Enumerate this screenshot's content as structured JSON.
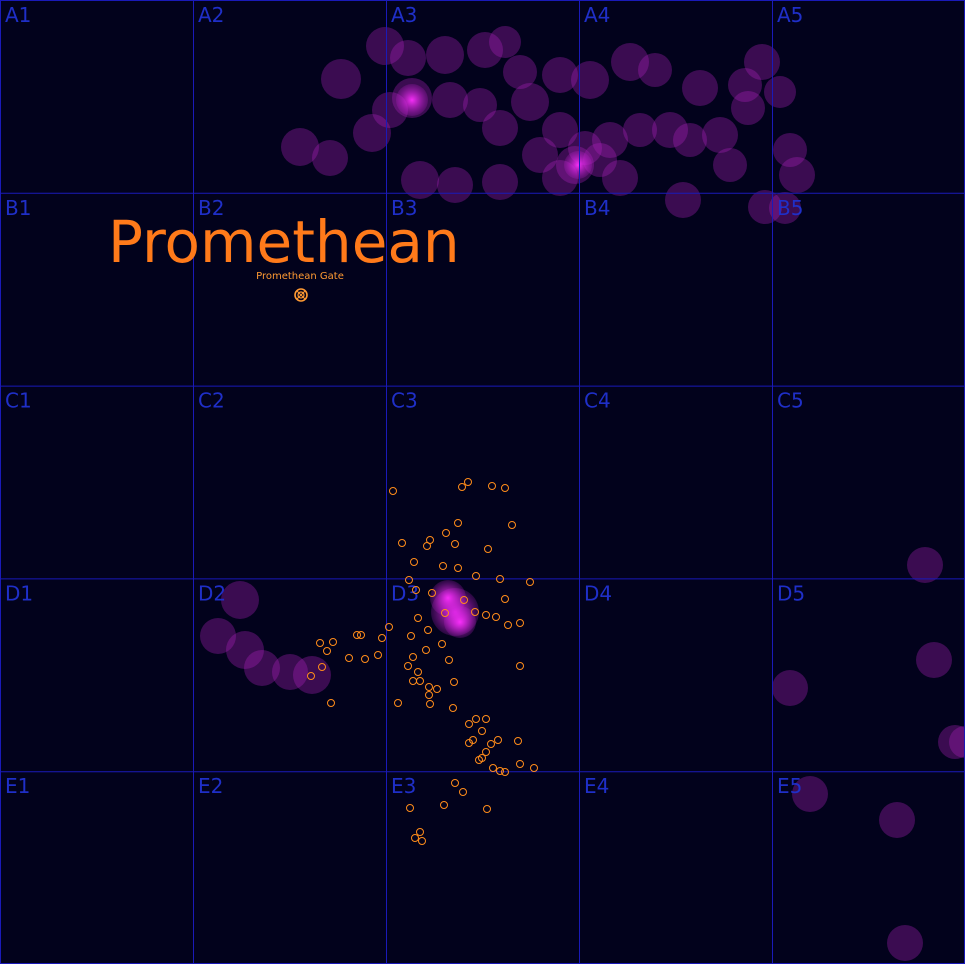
{
  "map": {
    "grid": {
      "rows": [
        "A",
        "B",
        "C",
        "D",
        "E"
      ],
      "cols": [
        "1",
        "2",
        "3",
        "4",
        "5"
      ],
      "line_color": "#1a1ab8",
      "label_color": "#1f2fc8"
    },
    "region_name": "Promethean",
    "region_color": "#ff7a1a",
    "gate": {
      "label": "Promethean Gate",
      "icon": "gate-icon",
      "color": "#ff9a33"
    },
    "nebula_color": "#b020c0",
    "system_color": "#ff8c1a"
  }
}
